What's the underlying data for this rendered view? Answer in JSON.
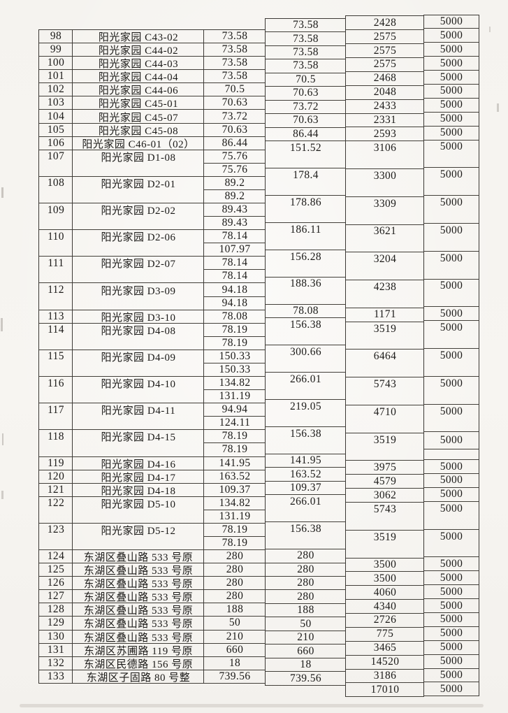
{
  "page": {
    "kind": "scanned table page",
    "language": "zh-CN"
  },
  "colors": {
    "paper": "#f6f4f0",
    "ink": "#1f1e1c",
    "line": "#3f3c38"
  },
  "table": {
    "artifacts": {
      "split_fee_cell_row": "118"
    },
    "rows": [
      {
        "no": "98",
        "name": "阳光家园 C43-02",
        "areas": [
          "73.58"
        ],
        "total_area": "73.58",
        "amount": "2428",
        "fee": "5000"
      },
      {
        "no": "99",
        "name": "阳光家园 C44-02",
        "areas": [
          "73.58"
        ],
        "total_area": "73.58",
        "amount": "2575",
        "fee": "5000"
      },
      {
        "no": "100",
        "name": "阳光家园 C44-03",
        "areas": [
          "73.58"
        ],
        "total_area": "73.58",
        "amount": "2575",
        "fee": "5000"
      },
      {
        "no": "101",
        "name": "阳光家园 C44-04",
        "areas": [
          "73.58"
        ],
        "total_area": "73.58",
        "amount": "2575",
        "fee": "5000"
      },
      {
        "no": "102",
        "name": "阳光家园 C44-06",
        "areas": [
          "70.5"
        ],
        "total_area": "70.5",
        "amount": "2468",
        "fee": "5000"
      },
      {
        "no": "103",
        "name": "阳光家园 C45-01",
        "areas": [
          "70.63"
        ],
        "total_area": "70.63",
        "amount": "2048",
        "fee": "5000"
      },
      {
        "no": "104",
        "name": "阳光家园 C45-07",
        "areas": [
          "73.72"
        ],
        "total_area": "73.72",
        "amount": "2433",
        "fee": "5000"
      },
      {
        "no": "105",
        "name": "阳光家园 C45-08",
        "areas": [
          "70.63"
        ],
        "total_area": "70.63",
        "amount": "2331",
        "fee": "5000"
      },
      {
        "no": "106",
        "name": "阳光家园 C46-01（02）",
        "areas": [
          "86.44"
        ],
        "total_area": "86.44",
        "amount": "2593",
        "fee": "5000"
      },
      {
        "no": "107",
        "name": "阳光家园 D1-08",
        "areas": [
          "75.76",
          "75.76"
        ],
        "total_area": "151.52",
        "amount": "3106",
        "fee": "5000"
      },
      {
        "no": "108",
        "name": "阳光家园 D2-01",
        "areas": [
          "89.2",
          "89.2"
        ],
        "total_area": "178.4",
        "amount": "3300",
        "fee": "5000"
      },
      {
        "no": "109",
        "name": "阳光家园 D2-02",
        "areas": [
          "89.43",
          "89.43"
        ],
        "total_area": "178.86",
        "amount": "3309",
        "fee": "5000"
      },
      {
        "no": "110",
        "name": "阳光家园 D2-06",
        "areas": [
          "78.14",
          "107.97"
        ],
        "total_area": "186.11",
        "amount": "3621",
        "fee": "5000"
      },
      {
        "no": "111",
        "name": "阳光家园 D2-07",
        "areas": [
          "78.14",
          "78.14"
        ],
        "total_area": "156.28",
        "amount": "3204",
        "fee": "5000"
      },
      {
        "no": "112",
        "name": "阳光家园 D3-09",
        "areas": [
          "94.18",
          "94.18"
        ],
        "total_area": "188.36",
        "amount": "4238",
        "fee": "5000"
      },
      {
        "no": "113",
        "name": "阳光家园 D3-10",
        "areas": [
          "78.08"
        ],
        "total_area": "78.08",
        "amount": "1171",
        "fee": "5000"
      },
      {
        "no": "114",
        "name": "阳光家园 D4-08",
        "areas": [
          "78.19",
          "78.19"
        ],
        "total_area": "156.38",
        "amount": "3519",
        "fee": "5000"
      },
      {
        "no": "115",
        "name": "阳光家园 D4-09",
        "areas": [
          "150.33",
          "150.33"
        ],
        "total_area": "300.66",
        "amount": "6464",
        "fee": "5000"
      },
      {
        "no": "116",
        "name": "阳光家园 D4-10",
        "areas": [
          "134.82",
          "131.19"
        ],
        "total_area": "266.01",
        "amount": "5743",
        "fee": "5000"
      },
      {
        "no": "117",
        "name": "阳光家园 D4-11",
        "areas": [
          "94.94",
          "124.11"
        ],
        "total_area": "219.05",
        "amount": "4710",
        "fee": "5000"
      },
      {
        "no": "118",
        "name": "阳光家园 D4-15",
        "areas": [
          "78.19",
          "78.19"
        ],
        "total_area": "156.38",
        "amount": "3519",
        "fee": "5000"
      },
      {
        "no": "119",
        "name": "阳光家园 D4-16",
        "areas": [
          "141.95"
        ],
        "total_area": "141.95",
        "amount": "3975",
        "fee": "5000"
      },
      {
        "no": "120",
        "name": "阳光家园 D4-17",
        "areas": [
          "163.52"
        ],
        "total_area": "163.52",
        "amount": "4579",
        "fee": "5000"
      },
      {
        "no": "121",
        "name": "阳光家园 D4-18",
        "areas": [
          "109.37"
        ],
        "total_area": "109.37",
        "amount": "3062",
        "fee": "5000"
      },
      {
        "no": "122",
        "name": "阳光家园 D5-10",
        "areas": [
          "134.82",
          "131.19"
        ],
        "total_area": "266.01",
        "amount": "5743",
        "fee": "5000"
      },
      {
        "no": "123",
        "name": "阳光家园 D5-12",
        "areas": [
          "78.19",
          "78.19"
        ],
        "total_area": "156.38",
        "amount": "3519",
        "fee": "5000"
      },
      {
        "no": "124",
        "name": "东湖区叠山路 533 号原",
        "areas": [
          "280"
        ],
        "total_area": "280",
        "amount": "3500",
        "fee": "5000"
      },
      {
        "no": "125",
        "name": "东湖区叠山路 533 号原",
        "areas": [
          "280"
        ],
        "total_area": "280",
        "amount": "3500",
        "fee": "5000"
      },
      {
        "no": "126",
        "name": "东湖区叠山路 533 号原",
        "areas": [
          "280"
        ],
        "total_area": "280",
        "amount": "4060",
        "fee": "5000"
      },
      {
        "no": "127",
        "name": "东湖区叠山路 533 号原",
        "areas": [
          "280"
        ],
        "total_area": "280",
        "amount": "4340",
        "fee": "5000"
      },
      {
        "no": "128",
        "name": "东湖区叠山路 533 号原",
        "areas": [
          "188"
        ],
        "total_area": "188",
        "amount": "2726",
        "fee": "5000"
      },
      {
        "no": "129",
        "name": "东湖区叠山路 533 号原",
        "areas": [
          "50"
        ],
        "total_area": "50",
        "amount": "775",
        "fee": "5000"
      },
      {
        "no": "130",
        "name": "东湖区叠山路 533 号原",
        "areas": [
          "210"
        ],
        "total_area": "210",
        "amount": "3465",
        "fee": "5000"
      },
      {
        "no": "131",
        "name": "东湖区苏圃路 119 号原",
        "areas": [
          "660"
        ],
        "total_area": "660",
        "amount": "14520",
        "fee": "5000"
      },
      {
        "no": "132",
        "name": "东湖区民德路 156 号原",
        "areas": [
          "18"
        ],
        "total_area": "18",
        "amount": "3186",
        "fee": "5000"
      },
      {
        "no": "133",
        "name": "东湖区子固路 80 号整",
        "areas": [
          "739.56"
        ],
        "total_area": "739.56",
        "amount": "17010",
        "fee": "5000"
      }
    ]
  }
}
